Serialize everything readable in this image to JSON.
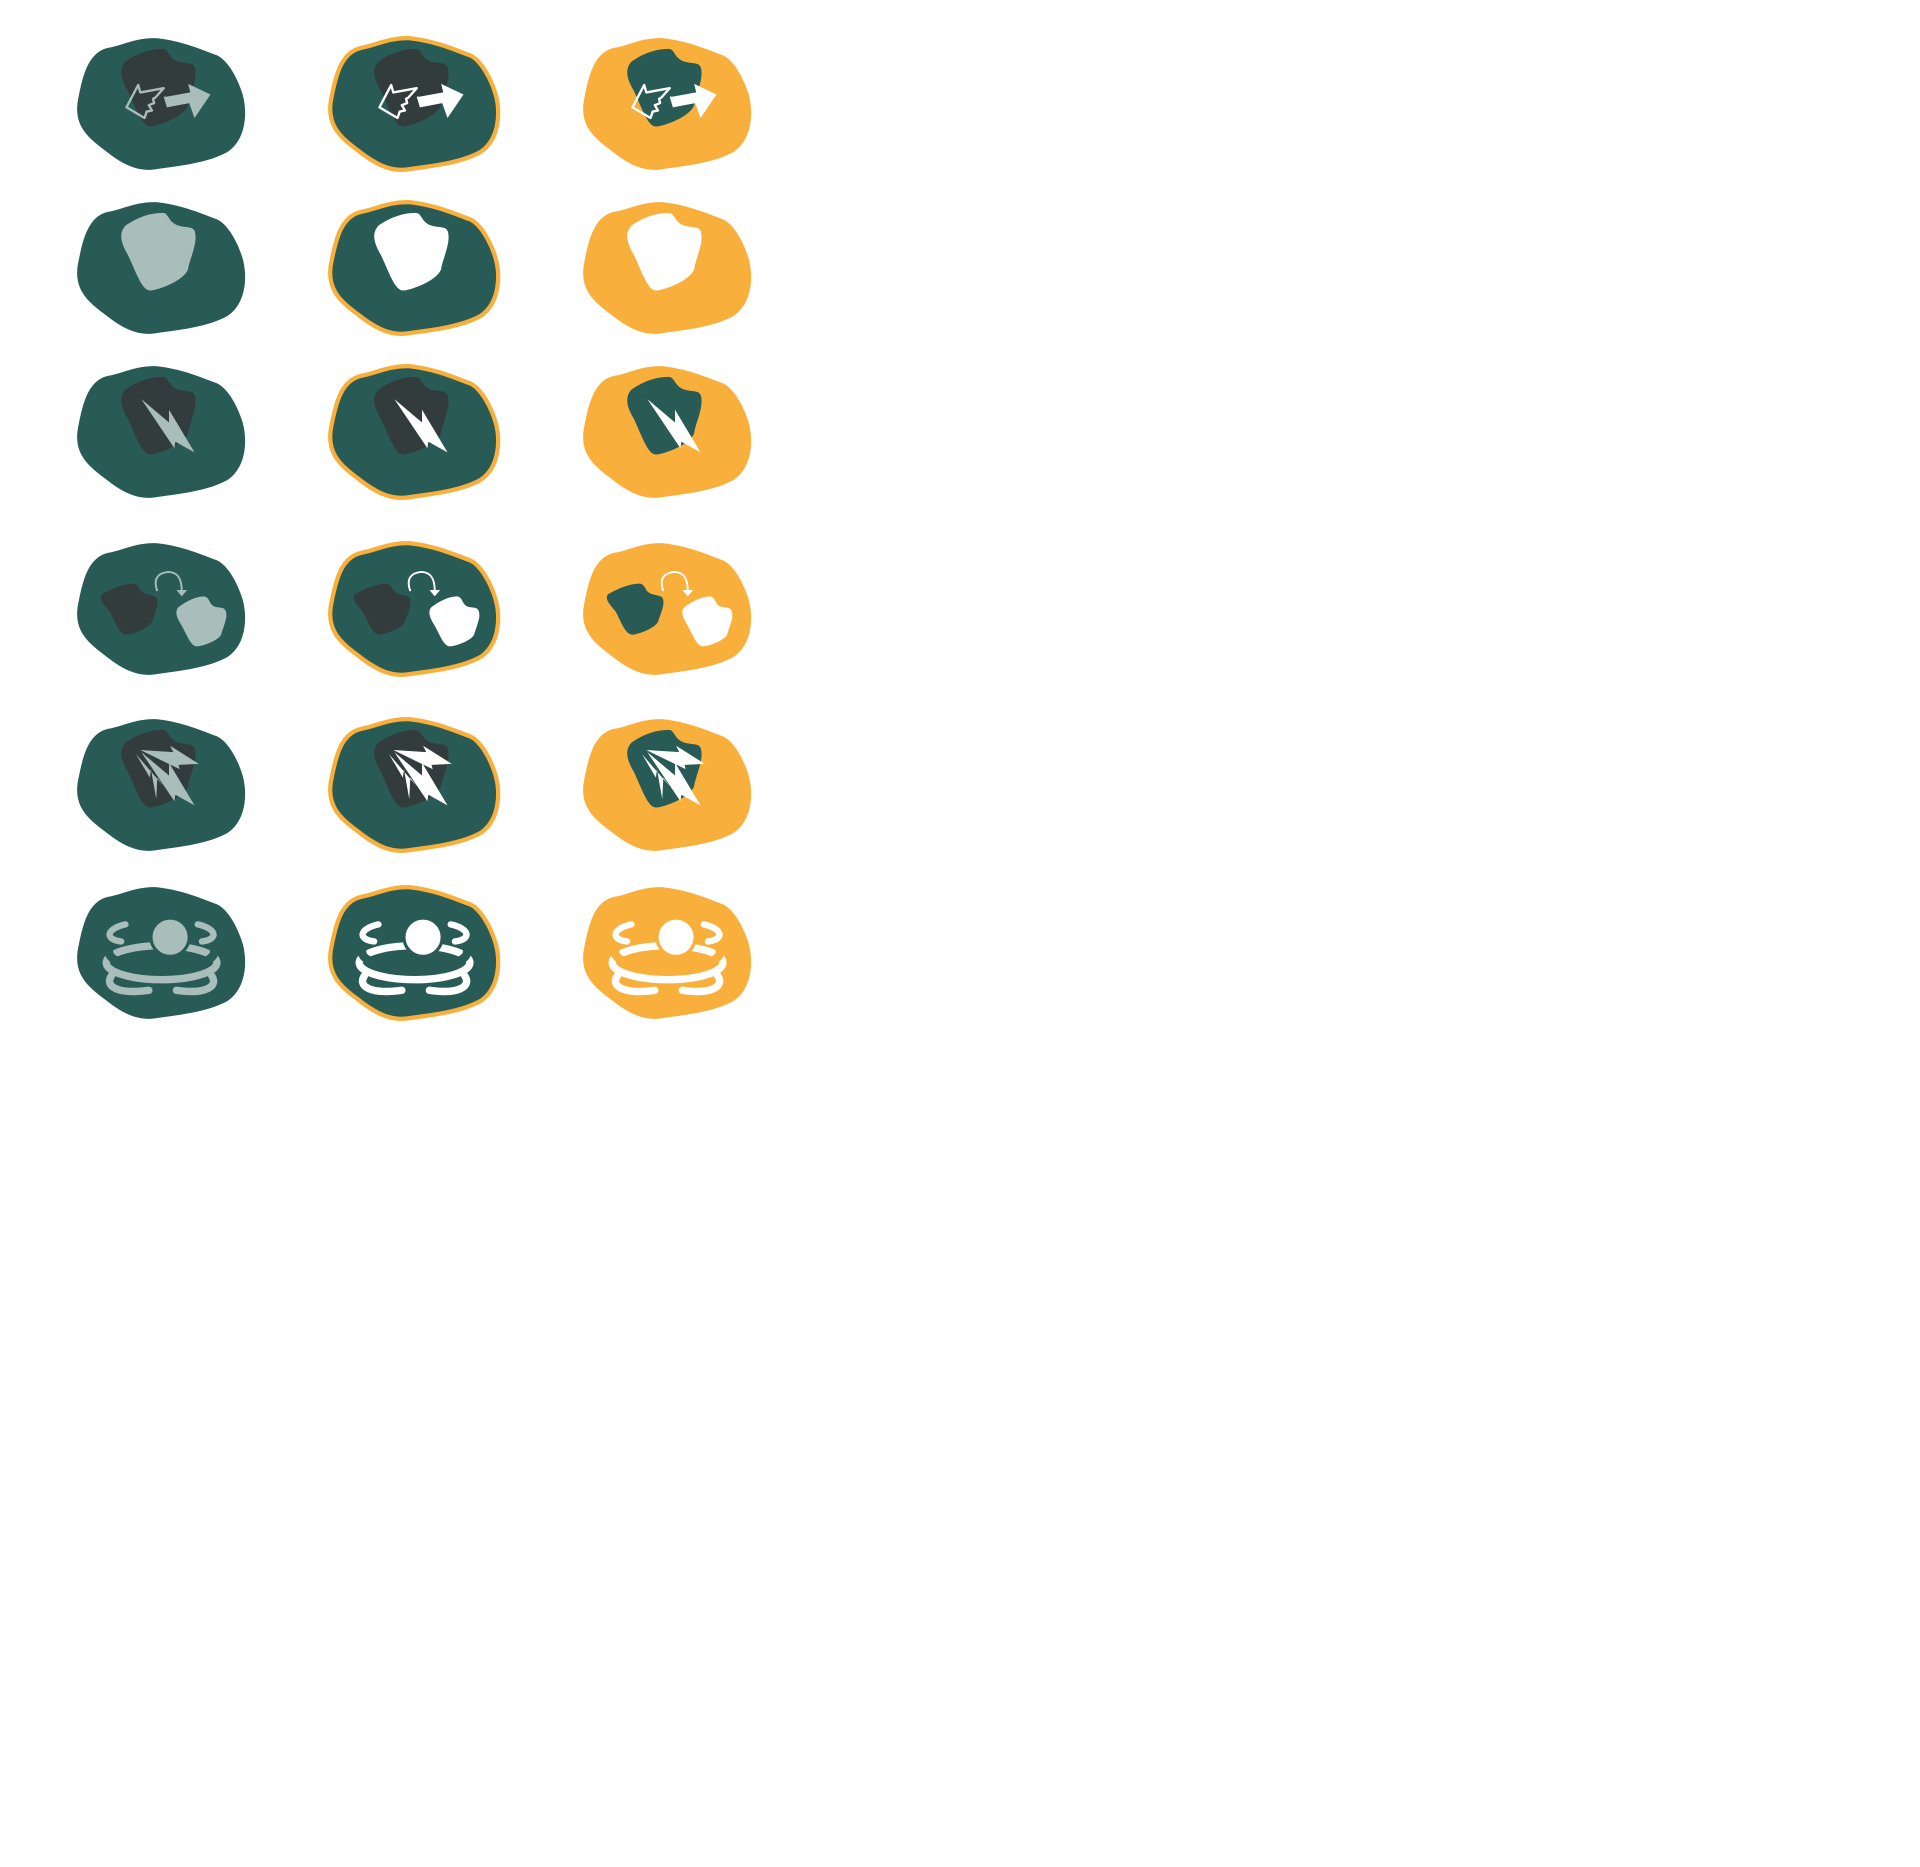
{
  "palette": {
    "teal": "#285b56",
    "orange": "#f8af3b",
    "dark": "#333c3c",
    "gray": "#a9bdbb",
    "white": "#ffffff",
    "background": "#ffffff"
  },
  "states": [
    {
      "name": "normal",
      "bg": "teal",
      "outline": "none",
      "panel": "dark",
      "glyph": "gray"
    },
    {
      "name": "hover",
      "bg": "teal",
      "outline": "orange",
      "panel": "dark",
      "glyph": "white"
    },
    {
      "name": "pressed",
      "bg": "orange",
      "outline": "none",
      "panel": "teal",
      "glyph": "white"
    }
  ],
  "icons": [
    {
      "id": "swap",
      "name": "swap-arrows-icon"
    },
    {
      "id": "blank",
      "name": "blank-stone-icon"
    },
    {
      "id": "bolt",
      "name": "lightning-icon"
    },
    {
      "id": "transfer",
      "name": "transfer-stone-icon"
    },
    {
      "id": "multibolt",
      "name": "chain-lightning-icon"
    },
    {
      "id": "orbit",
      "name": "orbit-ring-icon"
    }
  ]
}
